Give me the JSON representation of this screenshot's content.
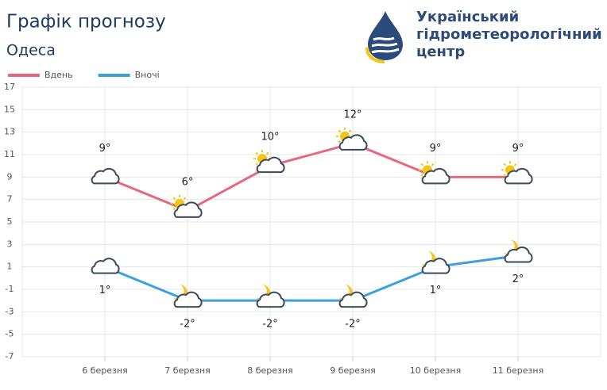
{
  "chart_data": {
    "type": "line",
    "title": "Графік прогнозу",
    "subtitle": "Одеса",
    "logo": [
      "Український",
      "гідрометеорологічний",
      "центр"
    ],
    "categories": [
      "6 березня",
      "7 березня",
      "8 березня",
      "9 березня",
      "10 березня",
      "11 березня"
    ],
    "series": [
      {
        "name": "Вдень",
        "color": "#e8677f",
        "values": [
          9,
          6,
          10,
          12,
          9,
          9
        ],
        "value_labels": [
          "9°",
          "6°",
          "10°",
          "12°",
          "9°",
          "9°"
        ]
      },
      {
        "name": "Вночі",
        "color": "#3d9fdc",
        "values": [
          1,
          -2,
          -2,
          -2,
          1,
          2
        ],
        "value_labels": [
          "1°",
          "-2°",
          "-2°",
          "-2°",
          "1°",
          "2°"
        ]
      }
    ],
    "ylim": [
      -7,
      17
    ],
    "yticks": [
      -7,
      -5,
      -3,
      -1,
      1,
      3,
      5,
      7,
      9,
      11,
      13,
      15,
      17
    ],
    "grid": true
  }
}
